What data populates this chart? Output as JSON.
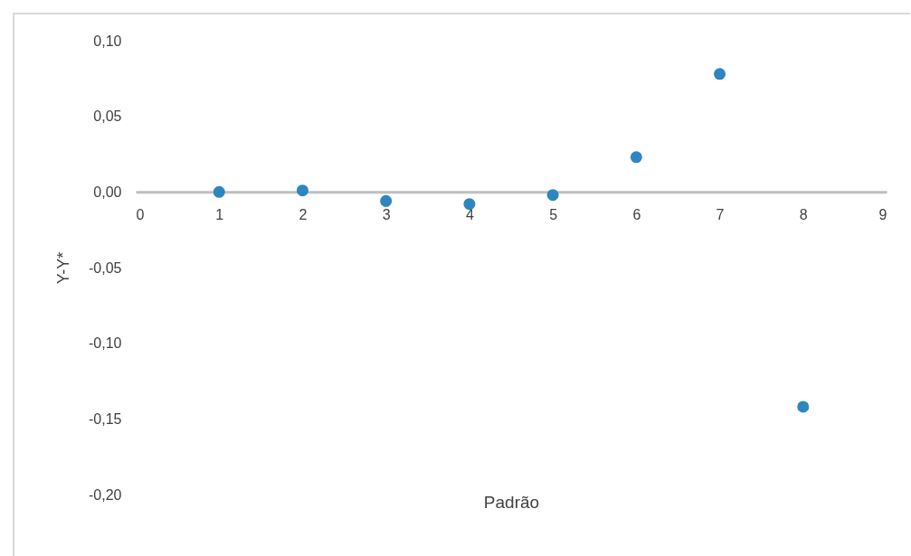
{
  "chart_data": {
    "type": "scatter",
    "xlabel": "Padrão",
    "ylabel": "Y-Y*",
    "x": [
      1,
      2,
      3,
      4,
      5,
      6,
      7,
      8
    ],
    "series": [
      {
        "color": "#2e86c1",
        "values": [
          0.0,
          0.001,
          -0.006,
          -0.008,
          -0.002,
          0.023,
          0.078,
          -0.142
        ]
      }
    ],
    "xlim": [
      0,
      9
    ],
    "xticks": [
      0,
      1,
      2,
      3,
      4,
      5,
      6,
      7,
      8,
      9
    ],
    "ylim": [
      -0.2,
      0.1
    ],
    "yticks": [
      {
        "value": 0.1,
        "label": "0,10"
      },
      {
        "value": 0.05,
        "label": "0,05"
      },
      {
        "value": 0,
        "label": "0,00"
      },
      {
        "value": -0.05,
        "label": "-0,05"
      },
      {
        "value": -0.1,
        "label": "-0,10"
      },
      {
        "value": -0.15,
        "label": "-0,15"
      },
      {
        "value": -0.2,
        "label": "-0,20"
      }
    ],
    "grid": false,
    "marker": "circle",
    "legend": false
  }
}
